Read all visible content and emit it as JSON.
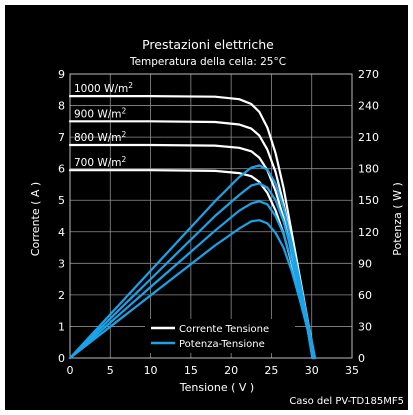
{
  "chart_data": {
    "type": "line",
    "title": "Prestazioni elettriche",
    "subtitle": "Temperatura della cella: 25°C",
    "xlabel": "Tensione ( V )",
    "ylabel_left": "Corrente ( A )",
    "ylabel_right": "Potenza ( W )",
    "caption": "Caso del PV-TD185MF5",
    "xlim": [
      0,
      35
    ],
    "ylim_left": [
      0,
      9
    ],
    "ylim_right": [
      0,
      270
    ],
    "xticks": [
      0,
      5,
      10,
      15,
      20,
      25,
      30,
      35
    ],
    "yticks_left": [
      0,
      1,
      2,
      3,
      4,
      5,
      6,
      7,
      8,
      9
    ],
    "yticks_right": [
      0,
      30,
      60,
      90,
      120,
      150,
      180,
      210,
      240,
      270
    ],
    "grid": true,
    "legend": {
      "placement": "bottom-center",
      "entries": [
        {
          "label": "Corrente Tensione",
          "color": "#ffffff"
        },
        {
          "label": "Potenza-Tensione",
          "color": "#1aa3e8"
        }
      ]
    },
    "irradiance_labels": [
      {
        "text": "1000 W/m",
        "sup": "2"
      },
      {
        "text": "900 W/m",
        "sup": "2"
      },
      {
        "text": "800 W/m",
        "sup": "2"
      },
      {
        "text": "700 W/m",
        "sup": "2"
      }
    ],
    "series": [
      {
        "group": "current",
        "irradiance": 1000,
        "x": [
          0,
          10,
          18,
          21,
          22.5,
          23.5,
          24.5,
          25.5,
          26.5,
          27.5,
          28.5,
          29.5,
          30.4
        ],
        "y": [
          8.3,
          8.3,
          8.28,
          8.2,
          8.05,
          7.8,
          7.3,
          6.5,
          5.4,
          4.0,
          2.6,
          1.2,
          0
        ]
      },
      {
        "group": "current",
        "irradiance": 900,
        "x": [
          0,
          10,
          18,
          21,
          22.5,
          23.5,
          24.5,
          25.5,
          26.5,
          27.5,
          28.5,
          29.5,
          30.3
        ],
        "y": [
          7.5,
          7.5,
          7.48,
          7.4,
          7.27,
          7.05,
          6.6,
          5.9,
          4.9,
          3.7,
          2.4,
          1.1,
          0
        ]
      },
      {
        "group": "current",
        "irradiance": 800,
        "x": [
          0,
          10,
          18,
          21,
          22.5,
          23.5,
          24.5,
          25.5,
          26.5,
          27.5,
          28.5,
          29.5,
          30.2
        ],
        "y": [
          6.75,
          6.75,
          6.73,
          6.66,
          6.55,
          6.35,
          5.95,
          5.3,
          4.45,
          3.35,
          2.2,
          1.0,
          0
        ]
      },
      {
        "group": "current",
        "irradiance": 700,
        "x": [
          0,
          10,
          18,
          21,
          22.5,
          23.5,
          24.5,
          25.5,
          26.5,
          27.5,
          28.5,
          29.5,
          30.1
        ],
        "y": [
          5.95,
          5.95,
          5.93,
          5.86,
          5.76,
          5.58,
          5.23,
          4.68,
          3.95,
          3.0,
          1.97,
          0.9,
          0
        ]
      },
      {
        "group": "power",
        "irradiance": 1000,
        "x": [
          0,
          10,
          18,
          21,
          22.5,
          23.5,
          24.5,
          25.5,
          26.5,
          27.5,
          28.5,
          29.5,
          30.4
        ],
        "y": [
          0,
          83,
          149,
          172,
          181,
          183,
          179,
          166,
          143,
          110,
          74,
          35,
          0
        ]
      },
      {
        "group": "power",
        "irradiance": 900,
        "x": [
          0,
          10,
          18,
          21,
          22.5,
          23.5,
          24.5,
          25.5,
          26.5,
          27.5,
          28.5,
          29.5,
          30.3
        ],
        "y": [
          0,
          75,
          135,
          155,
          164,
          166,
          162,
          150,
          130,
          102,
          68,
          32,
          0
        ]
      },
      {
        "group": "power",
        "irradiance": 800,
        "x": [
          0,
          10,
          18,
          21,
          22.5,
          23.5,
          24.5,
          25.5,
          26.5,
          27.5,
          28.5,
          29.5,
          30.2
        ],
        "y": [
          0,
          67.5,
          121,
          140,
          147,
          149,
          146,
          135,
          118,
          92,
          63,
          29.5,
          0
        ]
      },
      {
        "group": "power",
        "irradiance": 700,
        "x": [
          0,
          10,
          18,
          21,
          22.5,
          23.5,
          24.5,
          25.5,
          26.5,
          27.5,
          28.5,
          29.5,
          30.1
        ],
        "y": [
          0,
          59.5,
          107,
          123,
          130,
          131,
          128,
          119,
          105,
          83,
          56,
          26.5,
          0
        ]
      }
    ],
    "colors": {
      "background": "#000000",
      "current": "#ffffff",
      "power": "#1aa3e8",
      "grid": "#8c8c8c",
      "text": "#ffffff"
    }
  }
}
